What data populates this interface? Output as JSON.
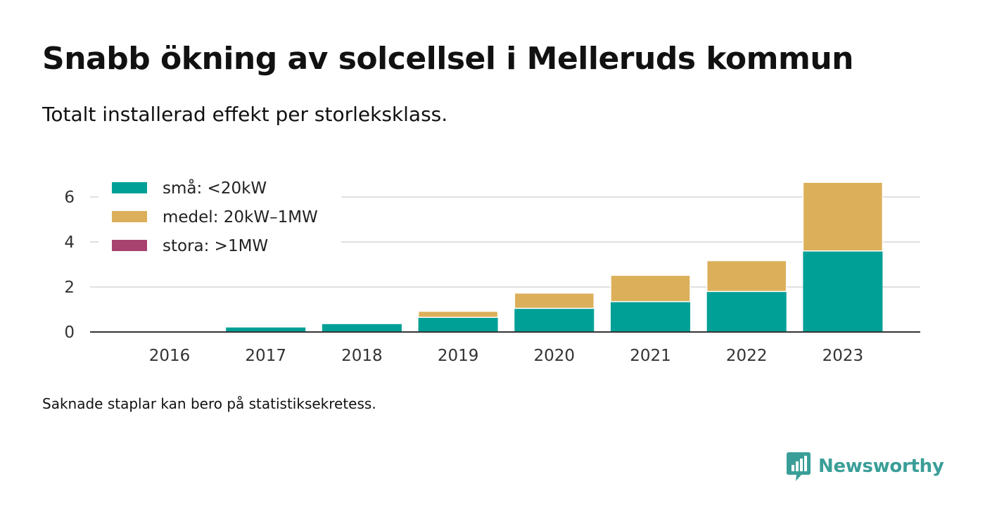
{
  "title": "Snabb ökning av solcellsel i Melleruds kommun",
  "subtitle": "Totalt installerad effekt per storleksklass.",
  "note": "Saknade staplar kan bero på statistiksekretess.",
  "brand": {
    "name": "Newsworthy",
    "color": "#3a9e98",
    "icon": "newsworthy-logo-icon"
  },
  "chart_data": {
    "type": "bar",
    "stacked": true,
    "categories": [
      "2016",
      "2017",
      "2018",
      "2019",
      "2020",
      "2021",
      "2022",
      "2023"
    ],
    "series": [
      {
        "name": "små: <20kW",
        "color": "#00a096",
        "values": [
          0.02,
          0.2,
          0.35,
          0.65,
          1.05,
          1.35,
          1.8,
          3.6
        ]
      },
      {
        "name": "medel: 20kW–1MW",
        "color": "#dcaf5a",
        "values": [
          0,
          0,
          0,
          0.27,
          0.68,
          1.17,
          1.37,
          3.05
        ]
      },
      {
        "name": "stora: >1MW",
        "color": "#a8426e",
        "values": [
          0,
          0,
          0,
          0,
          0,
          0,
          0,
          0
        ]
      }
    ],
    "yticks": [
      0,
      2,
      4,
      6
    ],
    "ylim": [
      0,
      7.3
    ],
    "grid": true,
    "legend": "top-left"
  }
}
